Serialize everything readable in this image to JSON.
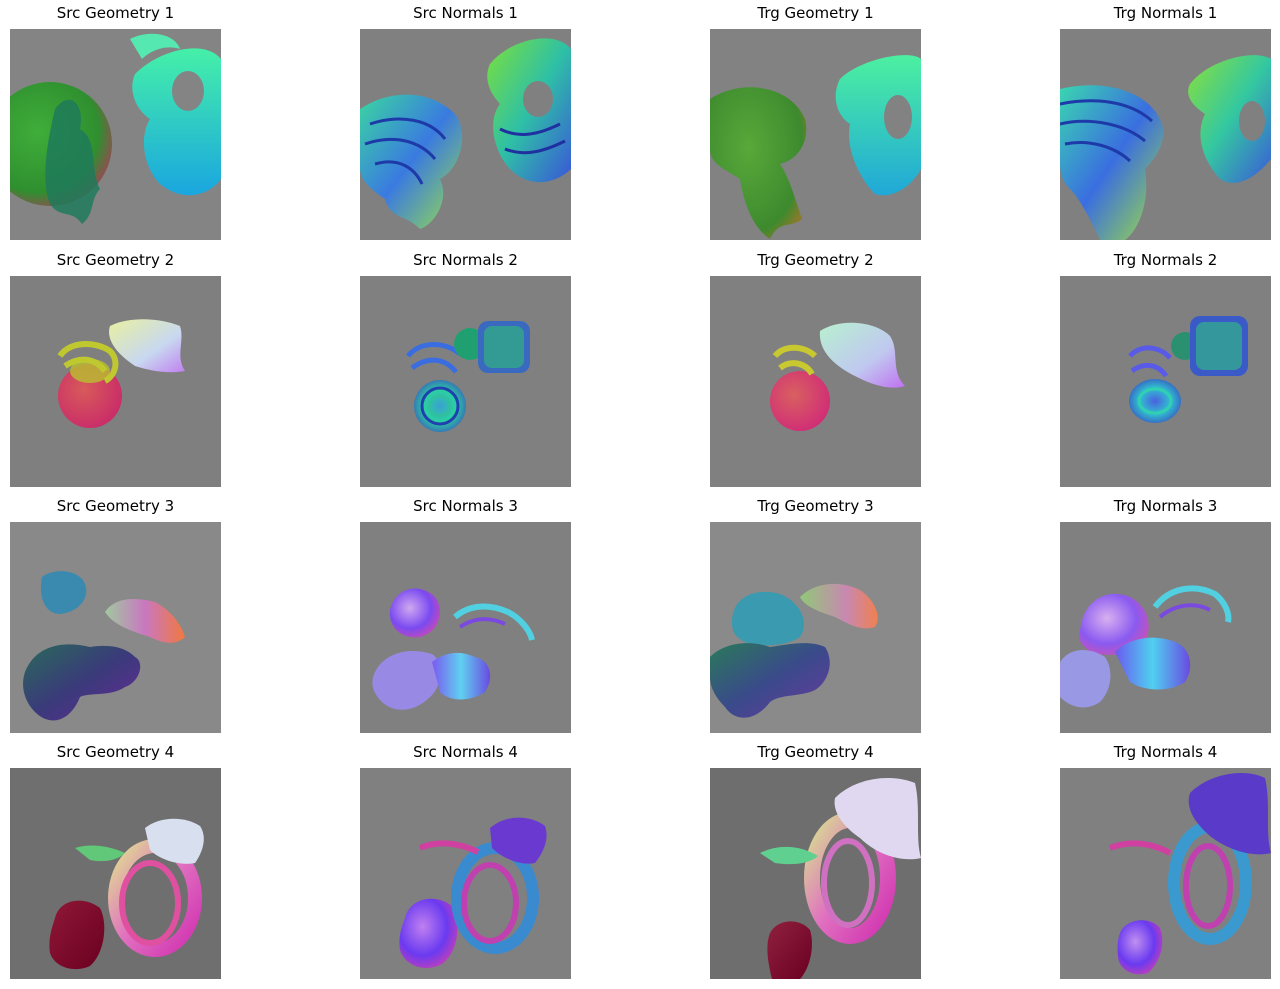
{
  "figure": {
    "panels": [
      {
        "title": "Src Geometry 1",
        "kind": "geometry",
        "row": 1,
        "background": "#848484"
      },
      {
        "title": "Src Normals 1",
        "kind": "normals",
        "row": 1,
        "background": "#808080"
      },
      {
        "title": "Trg Geometry 1",
        "kind": "geometry",
        "row": 1,
        "background": "#828282"
      },
      {
        "title": "Trg Normals 1",
        "kind": "normals",
        "row": 1,
        "background": "#808080"
      },
      {
        "title": "Src Geometry 2",
        "kind": "geometry",
        "row": 2,
        "background": "#7f7f7f"
      },
      {
        "title": "Src Normals 2",
        "kind": "normals",
        "row": 2,
        "background": "#808080"
      },
      {
        "title": "Trg Geometry 2",
        "kind": "geometry",
        "row": 2,
        "background": "#808080"
      },
      {
        "title": "Trg Normals 2",
        "kind": "normals",
        "row": 2,
        "background": "#808080"
      },
      {
        "title": "Src Geometry 3",
        "kind": "geometry",
        "row": 3,
        "background": "#898989"
      },
      {
        "title": "Src Normals 3",
        "kind": "normals",
        "row": 3,
        "background": "#808080"
      },
      {
        "title": "Trg Geometry 3",
        "kind": "geometry",
        "row": 3,
        "background": "#8a8a8a"
      },
      {
        "title": "Trg Normals 3",
        "kind": "normals",
        "row": 3,
        "background": "#808080"
      },
      {
        "title": "Src Geometry 4",
        "kind": "geometry",
        "row": 4,
        "background": "#6f6f6f"
      },
      {
        "title": "Src Normals 4",
        "kind": "normals",
        "row": 4,
        "background": "#808080"
      },
      {
        "title": "Trg Geometry 4",
        "kind": "geometry",
        "row": 4,
        "background": "#6e6e6e"
      },
      {
        "title": "Trg Normals 4",
        "kind": "normals",
        "row": 4,
        "background": "#808080"
      }
    ]
  }
}
